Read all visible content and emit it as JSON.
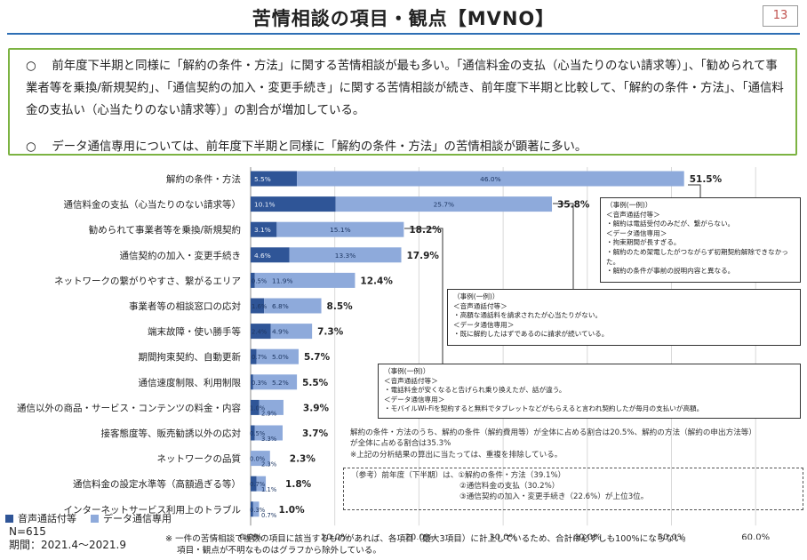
{
  "page": {
    "title": "苦情相談の項目・観点【MVNO】",
    "page_number": "13",
    "summary": [
      "○　 前年度下半期と同様に「解約の条件・方法」に関する苦情相談が最も多い。「通信料金の支払（心当たりのない請求等）」、「勧められて事業者等を乗換/新規契約」、「通信契約の加入・変更手続き」に関する苦情相談が続き、前年度下半期と比較して、「解約の条件・方法」、「通信料金の支払い（心当たりのない請求等）」の割合が増加している。",
      "○　 データ通信専用については、前年度下半期と同様に「解約の条件・方法」の苦情相談が顕著に多い。"
    ]
  },
  "notes": {
    "box1": {
      "title": "（事例(一例)）",
      "lines": [
        "＜音声通話付等＞",
        "・解約は電話受付のみだが、繋がらない。",
        "＜データ通信専用＞",
        "・拘束期間が長すぎる。",
        "・解約のため架電したがつながらず初期契約解除できなかった。",
        "・解約の条件が事前の説明内容と異なる。"
      ]
    },
    "box2": {
      "title": "（事例(一例)）",
      "lines": [
        "＜音声通話付等＞",
        "・高額な通話料を請求されたが心当たりがない。",
        "＜データ通信専用＞",
        "・既に解約したはずであるのに請求が続いている。"
      ]
    },
    "box3": {
      "title": "（事例(一例)）",
      "lines": [
        "＜音声通話付等＞",
        "・電話料金が安くなると告げられ乗り換えたが、話が違う。",
        "＜データ通信専用＞",
        "・モバイルWi-Fiを契約すると無料でタブレットなどがもらえると言われ契約したが毎月の支払いが高額。"
      ]
    },
    "explanation": [
      "解約の条件・方法のうち、解約の条件（解約費用等）が全体に占める割合は20.5%、解約の方法（解約の申出方法等）",
      "が全体に占める割合は35.3%",
      "※上記の分析結果の算出に当たっては、重複を排除している。"
    ],
    "reference": [
      "（参考）前年度（下半期）は、①解約の条件・方法（39.1%）",
      "②通信料金の支払（30.2%）",
      "③通信契約の加入・変更手続き（22.6%）が上位3位。"
    ],
    "n": "N=615",
    "period": "期間：2021.4～2021.9",
    "footnote": [
      "※ 一件の苦情相談で複数の項目に該当するものがあれば、各項目（最大3項目）に計上しているため、合計は必ずしも100%にならない。",
      "項目・観点が不明なものはグラフから除外している。"
    ]
  },
  "chart_data": {
    "type": "bar",
    "orientation": "horizontal",
    "stacked": true,
    "categories": [
      "解約の条件・方法",
      "通信料金の支払（心当たりのない請求等）",
      "勧められて事業者等を乗換/新規契約",
      "通信契約の加入・変更手続き",
      "ネットワークの繋がりやすさ、繋がるエリア",
      "事業者等の相談窓口の応対",
      "端末故障・使い勝手等",
      "期間拘束契約、自動更新",
      "通信速度制限、利用制限",
      "通信以外の商品・サービス・コンテンツの料金・内容",
      "接客態度等、販売勧誘以外の応対",
      "ネットワークの品質",
      "通信料金の設定水準等（高額過ぎる等）",
      "インターネットサービス利用上のトラブル"
    ],
    "series": [
      {
        "name": "音声通話付等",
        "values": [
          5.5,
          10.1,
          3.1,
          4.6,
          0.5,
          1.6,
          2.4,
          0.7,
          0.3,
          1.0,
          0.5,
          0.0,
          0.7,
          0.3
        ],
        "color": "#2f5597"
      },
      {
        "name": "データ通信専用",
        "values": [
          46.0,
          25.7,
          15.1,
          13.3,
          11.9,
          6.8,
          4.9,
          5.0,
          5.2,
          2.9,
          3.3,
          2.3,
          1.1,
          0.7
        ],
        "color": "#8eaadb"
      }
    ],
    "totals": [
      "51.5%",
      "35.8%",
      "18.2%",
      "17.9%",
      "12.4%",
      "8.5%",
      "7.3%",
      "5.7%",
      "5.5%",
      "3.9%",
      "3.7%",
      "2.3%",
      "1.8%",
      "1.0%"
    ],
    "x_ticks": [
      "0.0%",
      "10.0%",
      "20.0%",
      "30.0%",
      "40.0%",
      "50.0%",
      "60.0%"
    ],
    "xlim": [
      0,
      60
    ],
    "grid": true,
    "legend": "bottom-left"
  }
}
